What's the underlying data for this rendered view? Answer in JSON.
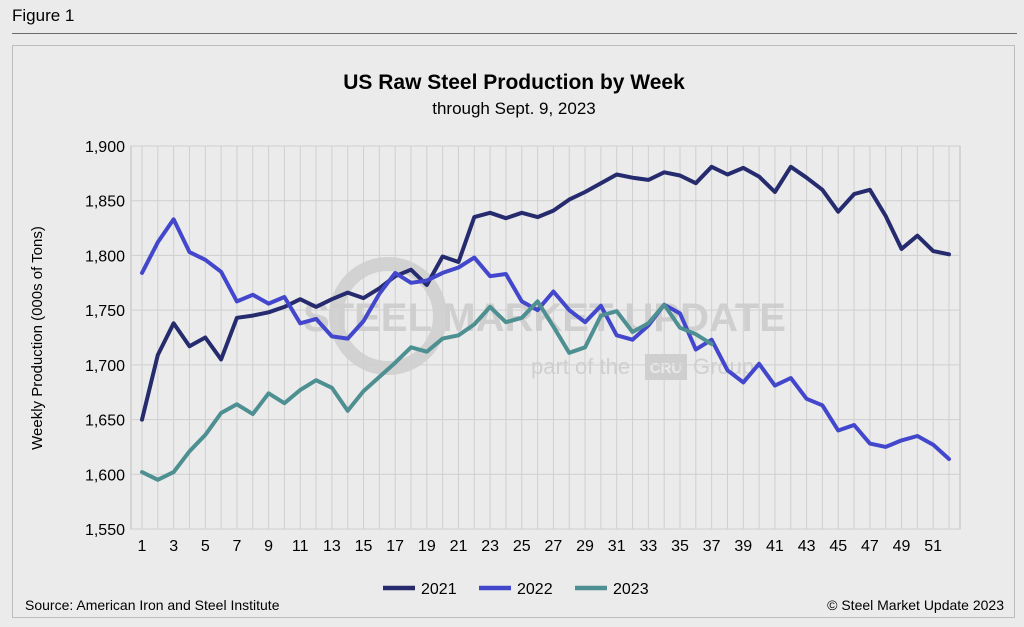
{
  "figure_label": "Figure 1",
  "watermark": {
    "main": "STEEL MARKET UPDATE",
    "sub_left": "part of the",
    "sub_logo": "CRU",
    "sub_right": "Group"
  },
  "footer": {
    "source": "Source: American Iron and Steel Institute",
    "copyright": "© Steel Market Update 2023"
  },
  "colors": {
    "2021": "#262b6e",
    "2022": "#4347cc",
    "2023": "#4e8f91"
  },
  "chart_data": {
    "type": "line",
    "title": "US Raw Steel Production by Week",
    "subtitle": "through Sept. 9, 2023",
    "xlabel": "",
    "ylabel": "Weekly Production (000s of Tons)",
    "ylim": [
      1550,
      1900
    ],
    "y_ticks": [
      "1,550",
      "1,600",
      "1,650",
      "1,700",
      "1,750",
      "1,800",
      "1,850",
      "1,900"
    ],
    "x_ticks": [
      "1",
      "3",
      "5",
      "7",
      "9",
      "11",
      "13",
      "15",
      "17",
      "19",
      "21",
      "23",
      "25",
      "27",
      "29",
      "31",
      "33",
      "35",
      "37",
      "39",
      "41",
      "43",
      "45",
      "47",
      "49",
      "51"
    ],
    "x_range": [
      1,
      52
    ],
    "grid": true,
    "legend_position": "bottom",
    "series": [
      {
        "name": "2021",
        "values": [
          1650,
          1709,
          1738,
          1717,
          1725,
          1705,
          1743,
          1745,
          1748,
          1753,
          1760,
          1753,
          1760,
          1766,
          1761,
          1770,
          1781,
          1787,
          1773,
          1799,
          1794,
          1835,
          1839,
          1834,
          1839,
          1835,
          1841,
          1851,
          1858,
          1866,
          1874,
          1871,
          1869,
          1876,
          1873,
          1866,
          1881,
          1874,
          1880,
          1872,
          1858,
          1881,
          1871,
          1860,
          1840,
          1856,
          1860,
          1836,
          1806,
          1818,
          1804,
          1801
        ]
      },
      {
        "name": "2022",
        "values": [
          1784,
          1812,
          1833,
          1803,
          1796,
          1785,
          1758,
          1764,
          1756,
          1762,
          1738,
          1742,
          1726,
          1724,
          1740,
          1765,
          1784,
          1775,
          1777,
          1784,
          1789,
          1798,
          1781,
          1783,
          1758,
          1750,
          1767,
          1750,
          1739,
          1754,
          1727,
          1723,
          1736,
          1755,
          1747,
          1714,
          1723,
          1695,
          1684,
          1701,
          1681,
          1688,
          1669,
          1663,
          1640,
          1645,
          1628,
          1625,
          1631,
          1635,
          1627,
          1614
        ]
      },
      {
        "name": "2023",
        "values": [
          1602,
          1595,
          1602,
          1621,
          1636,
          1656,
          1664,
          1655,
          1674,
          1665,
          1677,
          1686,
          1679,
          1658,
          1676,
          1689,
          1702,
          1716,
          1712,
          1724,
          1727,
          1737,
          1753,
          1739,
          1743,
          1758,
          1735,
          1711,
          1716,
          1745,
          1749,
          1730,
          1738,
          1755,
          1734,
          1728,
          1719
        ]
      }
    ]
  }
}
